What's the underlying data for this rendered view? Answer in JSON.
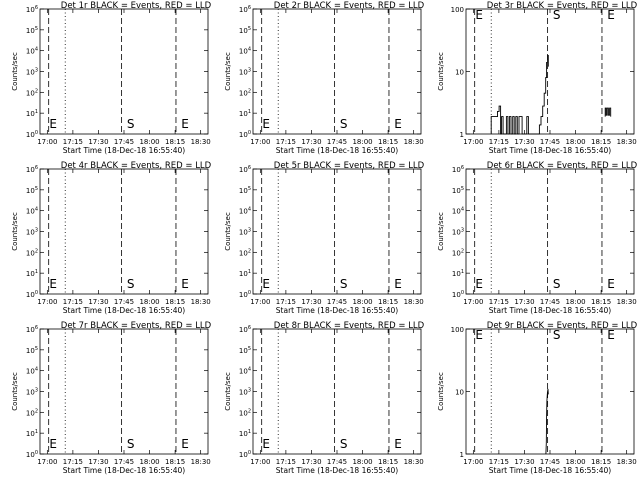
{
  "figure": {
    "xlabel": "Start Time (18-Dec-18 16:55:40)",
    "ylabel": "Counts/sec",
    "xticks": [
      "17:00",
      "17:15",
      "17:30",
      "17:45",
      "18:00",
      "18:15",
      "18:30"
    ],
    "colors": {
      "axes": "#000000",
      "events": "#000000",
      "lld": "#ff0000"
    }
  },
  "chart_data": [
    {
      "type": "line",
      "title": "Det 1r BLACK = Events, RED = LLD",
      "scale": "log",
      "ylim": [
        1,
        1000000.0
      ],
      "yticks": [
        {
          "v": 1,
          "l": "10^0"
        },
        {
          "v": 10,
          "l": "10^1"
        },
        {
          "v": 100,
          "l": "10^2"
        },
        {
          "v": 1000,
          "l": "10^3"
        },
        {
          "v": 10000,
          "l": "10^4"
        },
        {
          "v": 100000,
          "l": "10^5"
        },
        {
          "v": 1000000,
          "l": "10^6"
        }
      ],
      "xlim_minutes": [
        -4.3,
        94.3
      ],
      "dotted_x": [
        10.5,
        97.8
      ],
      "dashed_x": [
        0.8,
        43.6,
        75.5
      ],
      "markers": [
        {
          "label": "E",
          "x": 0
        },
        {
          "label": "S",
          "x": 45.5
        },
        {
          "label": "E",
          "x": 77.4
        }
      ],
      "series": []
    },
    {
      "type": "line",
      "title": "Det 2r BLACK = Events, RED = LLD",
      "scale": "log",
      "ylim": [
        1,
        1000000.0
      ],
      "yticks": [
        {
          "v": 1,
          "l": "10^0"
        },
        {
          "v": 10,
          "l": "10^1"
        },
        {
          "v": 100,
          "l": "10^2"
        },
        {
          "v": 1000,
          "l": "10^3"
        },
        {
          "v": 10000,
          "l": "10^4"
        },
        {
          "v": 100000,
          "l": "10^5"
        },
        {
          "v": 1000000,
          "l": "10^6"
        }
      ],
      "xlim_minutes": [
        -4.3,
        94.3
      ],
      "dotted_x": [
        10.5,
        97.8
      ],
      "dashed_x": [
        0.8,
        43.6,
        75.5
      ],
      "markers": [
        {
          "label": "E",
          "x": 0
        },
        {
          "label": "S",
          "x": 45.5
        },
        {
          "label": "E",
          "x": 77.4
        }
      ],
      "series": []
    },
    {
      "type": "line",
      "title": "Det 3r BLACK = Events, RED = LLD",
      "scale": "log",
      "ylim": [
        1,
        100
      ],
      "yticks": [
        {
          "v": 1,
          "l": "1"
        },
        {
          "v": 10,
          "l": "10"
        },
        {
          "v": 100,
          "l": "100"
        }
      ],
      "xlim_minutes": [
        -4.3,
        94.3
      ],
      "dotted_x": [
        10.5,
        97.8
      ],
      "dashed_x": [
        0.8,
        43.6,
        75.5
      ],
      "markers": [
        {
          "label": "E",
          "x": 0
        },
        {
          "label": "S",
          "x": 45.5
        },
        {
          "label": "E",
          "x": 77.4
        }
      ],
      "series": [
        {
          "color": "#000000",
          "points": [
            [
              10.5,
              1
            ],
            [
              10.5,
              1.9
            ],
            [
              14.2,
              1.9
            ],
            [
              14.2,
              2.3
            ],
            [
              15.1,
              2.3
            ],
            [
              15.1,
              2.8
            ],
            [
              16.0,
              2.8
            ],
            [
              16.0,
              1
            ],
            [
              16.6,
              1
            ],
            [
              16.6,
              1.9
            ],
            [
              17.5,
              1.9
            ],
            [
              17.5,
              1
            ],
            [
              19.4,
              1
            ],
            [
              19.4,
              1.9
            ],
            [
              20.3,
              1.9
            ],
            [
              20.3,
              1
            ],
            [
              21.2,
              1
            ],
            [
              21.2,
              1.9
            ],
            [
              22.1,
              1.9
            ],
            [
              22.1,
              1
            ],
            [
              23.1,
              1
            ],
            [
              23.1,
              1.9
            ],
            [
              24.0,
              1.9
            ],
            [
              24.0,
              1
            ],
            [
              24.9,
              1
            ],
            [
              24.9,
              1.9
            ],
            [
              25.8,
              1.9
            ],
            [
              25.8,
              1
            ],
            [
              26.8,
              1
            ],
            [
              26.8,
              1.9
            ],
            [
              28.6,
              1.9
            ],
            [
              28.6,
              1
            ],
            [
              31.4,
              1
            ],
            [
              31.4,
              1.9
            ],
            [
              32.3,
              1.9
            ],
            [
              32.3,
              1
            ],
            [
              38.8,
              1
            ],
            [
              38.8,
              1.4
            ],
            [
              39.7,
              1.4
            ],
            [
              39.7,
              1.9
            ],
            [
              40.7,
              1.9
            ],
            [
              40.7,
              2.8
            ],
            [
              41.6,
              2.8
            ],
            [
              41.6,
              4.5
            ],
            [
              42.5,
              4.5
            ],
            [
              42.5,
              8
            ],
            [
              43.0,
              8
            ],
            [
              43.0,
              14
            ],
            [
              43.6,
              14
            ],
            [
              43.6,
              18
            ],
            [
              44.0,
              18
            ],
            [
              44.0,
              12
            ]
          ]
        },
        {
          "color": "#000000",
          "points": [
            [
              77.4,
              1.9
            ],
            [
              77.4,
              2.6
            ],
            [
              78.0,
              2.6
            ],
            [
              78.0,
              2.0
            ],
            [
              78.6,
              2.0
            ],
            [
              78.6,
              2.6
            ],
            [
              79.3,
              2.6
            ],
            [
              79.3,
              2.0
            ],
            [
              80.0,
              2.0
            ],
            [
              80.0,
              2.6
            ],
            [
              80.6,
              2.6
            ],
            [
              80.6,
              1.9
            ]
          ]
        }
      ]
    },
    {
      "type": "line",
      "title": "Det 4r BLACK = Events, RED = LLD",
      "scale": "log",
      "ylim": [
        1,
        1000000.0
      ],
      "yticks": [
        {
          "v": 1,
          "l": "10^0"
        },
        {
          "v": 10,
          "l": "10^1"
        },
        {
          "v": 100,
          "l": "10^2"
        },
        {
          "v": 1000,
          "l": "10^3"
        },
        {
          "v": 10000,
          "l": "10^4"
        },
        {
          "v": 100000,
          "l": "10^5"
        },
        {
          "v": 1000000,
          "l": "10^6"
        }
      ],
      "xlim_minutes": [
        -4.3,
        94.3
      ],
      "dotted_x": [
        10.5,
        97.8
      ],
      "dashed_x": [
        0.8,
        43.6,
        75.5
      ],
      "markers": [
        {
          "label": "E",
          "x": 0
        },
        {
          "label": "S",
          "x": 45.5
        },
        {
          "label": "E",
          "x": 77.4
        }
      ],
      "series": []
    },
    {
      "type": "line",
      "title": "Det 5r BLACK = Events, RED = LLD",
      "scale": "log",
      "ylim": [
        1,
        1000000.0
      ],
      "yticks": [
        {
          "v": 1,
          "l": "10^0"
        },
        {
          "v": 10,
          "l": "10^1"
        },
        {
          "v": 100,
          "l": "10^2"
        },
        {
          "v": 1000,
          "l": "10^3"
        },
        {
          "v": 10000,
          "l": "10^4"
        },
        {
          "v": 100000,
          "l": "10^5"
        },
        {
          "v": 1000000,
          "l": "10^6"
        }
      ],
      "xlim_minutes": [
        -4.3,
        94.3
      ],
      "dotted_x": [
        10.5,
        97.8
      ],
      "dashed_x": [
        0.8,
        43.6,
        75.5
      ],
      "markers": [
        {
          "label": "E",
          "x": 0
        },
        {
          "label": "S",
          "x": 45.5
        },
        {
          "label": "E",
          "x": 77.4
        }
      ],
      "series": []
    },
    {
      "type": "line",
      "title": "Det 6r BLACK = Events, RED = LLD",
      "scale": "log",
      "ylim": [
        1,
        1000000.0
      ],
      "yticks": [
        {
          "v": 1,
          "l": "10^0"
        },
        {
          "v": 10,
          "l": "10^1"
        },
        {
          "v": 100,
          "l": "10^2"
        },
        {
          "v": 1000,
          "l": "10^3"
        },
        {
          "v": 10000,
          "l": "10^4"
        },
        {
          "v": 100000,
          "l": "10^5"
        },
        {
          "v": 1000000,
          "l": "10^6"
        }
      ],
      "xlim_minutes": [
        -4.3,
        94.3
      ],
      "dotted_x": [
        10.5,
        97.8
      ],
      "dashed_x": [
        0.8,
        43.6,
        75.5
      ],
      "markers": [
        {
          "label": "E",
          "x": 0
        },
        {
          "label": "S",
          "x": 45.5
        },
        {
          "label": "E",
          "x": 77.4
        }
      ],
      "series": []
    },
    {
      "type": "line",
      "title": "Det 7r BLACK = Events, RED = LLD",
      "scale": "log",
      "ylim": [
        1,
        1000000.0
      ],
      "yticks": [
        {
          "v": 1,
          "l": "10^0"
        },
        {
          "v": 10,
          "l": "10^1"
        },
        {
          "v": 100,
          "l": "10^2"
        },
        {
          "v": 1000,
          "l": "10^3"
        },
        {
          "v": 10000,
          "l": "10^4"
        },
        {
          "v": 100000,
          "l": "10^5"
        },
        {
          "v": 1000000,
          "l": "10^6"
        }
      ],
      "xlim_minutes": [
        -4.3,
        94.3
      ],
      "dotted_x": [
        10.5,
        97.8
      ],
      "dashed_x": [
        0.8,
        43.6,
        75.5
      ],
      "markers": [
        {
          "label": "E",
          "x": 0
        },
        {
          "label": "S",
          "x": 45.5
        },
        {
          "label": "E",
          "x": 77.4
        }
      ],
      "series": []
    },
    {
      "type": "line",
      "title": "Det 8r BLACK = Events, RED = LLD",
      "scale": "log",
      "ylim": [
        1,
        1000000.0
      ],
      "yticks": [
        {
          "v": 1,
          "l": "10^0"
        },
        {
          "v": 10,
          "l": "10^1"
        },
        {
          "v": 100,
          "l": "10^2"
        },
        {
          "v": 1000,
          "l": "10^3"
        },
        {
          "v": 10000,
          "l": "10^4"
        },
        {
          "v": 100000,
          "l": "10^5"
        },
        {
          "v": 1000000,
          "l": "10^6"
        }
      ],
      "xlim_minutes": [
        -4.3,
        94.3
      ],
      "dotted_x": [
        10.5,
        97.8
      ],
      "dashed_x": [
        0.8,
        43.6,
        75.5
      ],
      "markers": [
        {
          "label": "E",
          "x": 0
        },
        {
          "label": "S",
          "x": 45.5
        },
        {
          "label": "E",
          "x": 77.4
        }
      ],
      "series": []
    },
    {
      "type": "line",
      "title": "Det 9r BLACK = Events, RED = LLD",
      "scale": "log",
      "ylim": [
        1,
        100
      ],
      "yticks": [
        {
          "v": 1,
          "l": "1"
        },
        {
          "v": 10,
          "l": "10"
        },
        {
          "v": 100,
          "l": "100"
        }
      ],
      "xlim_minutes": [
        -4.3,
        94.3
      ],
      "dotted_x": [
        10.5,
        97.8
      ],
      "dashed_x": [
        0.8,
        43.6,
        75.5
      ],
      "markers": [
        {
          "label": "E",
          "x": 0
        },
        {
          "label": "S",
          "x": 45.5
        },
        {
          "label": "E",
          "x": 77.4
        }
      ],
      "series": [
        {
          "color": "#000000",
          "points": [
            [
              42.6,
              1
            ],
            [
              42.8,
              1.5
            ],
            [
              43.0,
              4
            ],
            [
              43.2,
              7
            ],
            [
              43.4,
              9
            ],
            [
              43.6,
              10
            ],
            [
              43.8,
              11
            ],
            [
              44.0,
              9
            ]
          ]
        }
      ]
    }
  ]
}
